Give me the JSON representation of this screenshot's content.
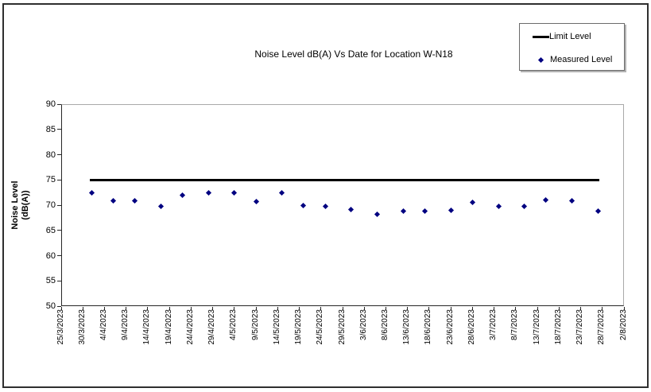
{
  "frame": {
    "border_color": "#2f2f2f",
    "background": "#ffffff"
  },
  "chart_data": {
    "type": "scatter",
    "title": "Noise Level dB(A) Vs Date for Location W-N18",
    "grid": "off",
    "y_axis": {
      "title_lines": [
        "Noise Level",
        "(dB(A))"
      ],
      "min": 50,
      "max": 90,
      "step": 5,
      "tick_labels": [
        "50",
        "55",
        "60",
        "65",
        "70",
        "75",
        "80",
        "85",
        "90"
      ]
    },
    "x_axis": {
      "days_per_tick": 5,
      "total_days": 130,
      "tick_labels": [
        "25/3/2023",
        "30/3/2023",
        "4/4/2023",
        "9/4/2023",
        "14/4/2023",
        "19/4/2023",
        "24/4/2023",
        "29/4/2023",
        "4/5/2023",
        "9/5/2023",
        "14/5/2023",
        "19/5/2023",
        "24/5/2023",
        "29/5/2023",
        "3/6/2023",
        "8/6/2023",
        "13/6/2023",
        "18/6/2023",
        "23/6/2023",
        "28/6/2023",
        "3/7/2023",
        "8/7/2023",
        "13/7/2023",
        "18/7/2023",
        "23/7/2023",
        "28/7/2023",
        "2/8/2023"
      ]
    },
    "legend": {
      "position": "top-right",
      "items": [
        "Limit Level",
        "Measured Level"
      ]
    },
    "series": [
      {
        "name": "Limit Level",
        "type": "line",
        "color": "#000000",
        "value": 75,
        "x_start_day": 7,
        "x_end_day": 124
      },
      {
        "name": "Measured Level",
        "type": "scatter",
        "color": "#000080",
        "marker": "diamond",
        "points": [
          {
            "day": 7,
            "approx_date": "1/4/2023",
            "value": 72.4
          },
          {
            "day": 12,
            "approx_date": "6/4/2023",
            "value": 70.9
          },
          {
            "day": 17,
            "approx_date": "11/4/2023",
            "value": 70.9
          },
          {
            "day": 23,
            "approx_date": "17/4/2023",
            "value": 69.7
          },
          {
            "day": 28,
            "approx_date": "22/4/2023",
            "value": 71.9
          },
          {
            "day": 34,
            "approx_date": "28/4/2023",
            "value": 72.4
          },
          {
            "day": 40,
            "approx_date": "4/5/2023",
            "value": 72.4
          },
          {
            "day": 45,
            "approx_date": "9/5/2023",
            "value": 70.7
          },
          {
            "day": 51,
            "approx_date": "15/5/2023",
            "value": 72.4
          },
          {
            "day": 56,
            "approx_date": "20/5/2023",
            "value": 69.9
          },
          {
            "day": 61,
            "approx_date": "25/5/2023",
            "value": 69.7
          },
          {
            "day": 67,
            "approx_date": "31/5/2023",
            "value": 69.2
          },
          {
            "day": 73,
            "approx_date": "6/6/2023",
            "value": 68.2
          },
          {
            "day": 79,
            "approx_date": "12/6/2023",
            "value": 68.8
          },
          {
            "day": 84,
            "approx_date": "17/6/2023",
            "value": 68.8
          },
          {
            "day": 90,
            "approx_date": "23/6/2023",
            "value": 69.0
          },
          {
            "day": 95,
            "approx_date": "28/6/2023",
            "value": 70.5
          },
          {
            "day": 101,
            "approx_date": "4/7/2023",
            "value": 69.8
          },
          {
            "day": 107,
            "approx_date": "10/7/2023",
            "value": 69.8
          },
          {
            "day": 112,
            "approx_date": "15/7/2023",
            "value": 71.0
          },
          {
            "day": 118,
            "approx_date": "21/7/2023",
            "value": 70.8
          },
          {
            "day": 124,
            "approx_date": "27/7/2023",
            "value": 68.8
          }
        ]
      }
    ]
  }
}
